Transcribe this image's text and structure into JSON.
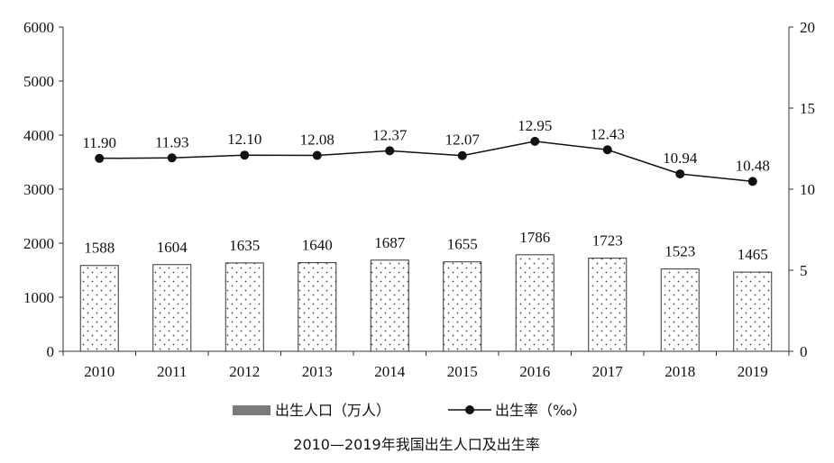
{
  "chart_data": {
    "type": "bar",
    "title": "2010—2019年我国出生人口及出生率",
    "categories": [
      "2010",
      "2011",
      "2012",
      "2013",
      "2014",
      "2015",
      "2016",
      "2017",
      "2018",
      "2019"
    ],
    "series": [
      {
        "name": "出生人口（万人）",
        "type": "bar",
        "axis": "left",
        "values": [
          1588,
          1604,
          1635,
          1640,
          1687,
          1655,
          1786,
          1723,
          1523,
          1465
        ],
        "labels": [
          "1588",
          "1604",
          "1635",
          "1640",
          "1687",
          "1655",
          "1786",
          "1723",
          "1523",
          "1465"
        ]
      },
      {
        "name": "出生率（‰）",
        "type": "line",
        "axis": "right",
        "values": [
          11.9,
          11.93,
          12.1,
          12.08,
          12.37,
          12.07,
          12.95,
          12.43,
          10.94,
          10.48
        ],
        "labels": [
          "11.90",
          "11.93",
          "12.10",
          "12.08",
          "12.37",
          "12.07",
          "12.95",
          "12.43",
          "10.94",
          "10.48"
        ]
      }
    ],
    "y_left": {
      "ylim": [
        0,
        6000
      ],
      "ticks": [
        "0",
        "1000",
        "2000",
        "3000",
        "4000",
        "5000",
        "6000"
      ]
    },
    "y_right": {
      "ylim": [
        0,
        20
      ],
      "ticks": [
        "0",
        "5",
        "10",
        "15",
        "20"
      ]
    },
    "grid": false,
    "legend_position": "bottom",
    "colors": {
      "bar_outline": "#333333",
      "bar_dots": "#444444",
      "line": "#111111",
      "legend_bar": "#7a7a7a"
    }
  }
}
